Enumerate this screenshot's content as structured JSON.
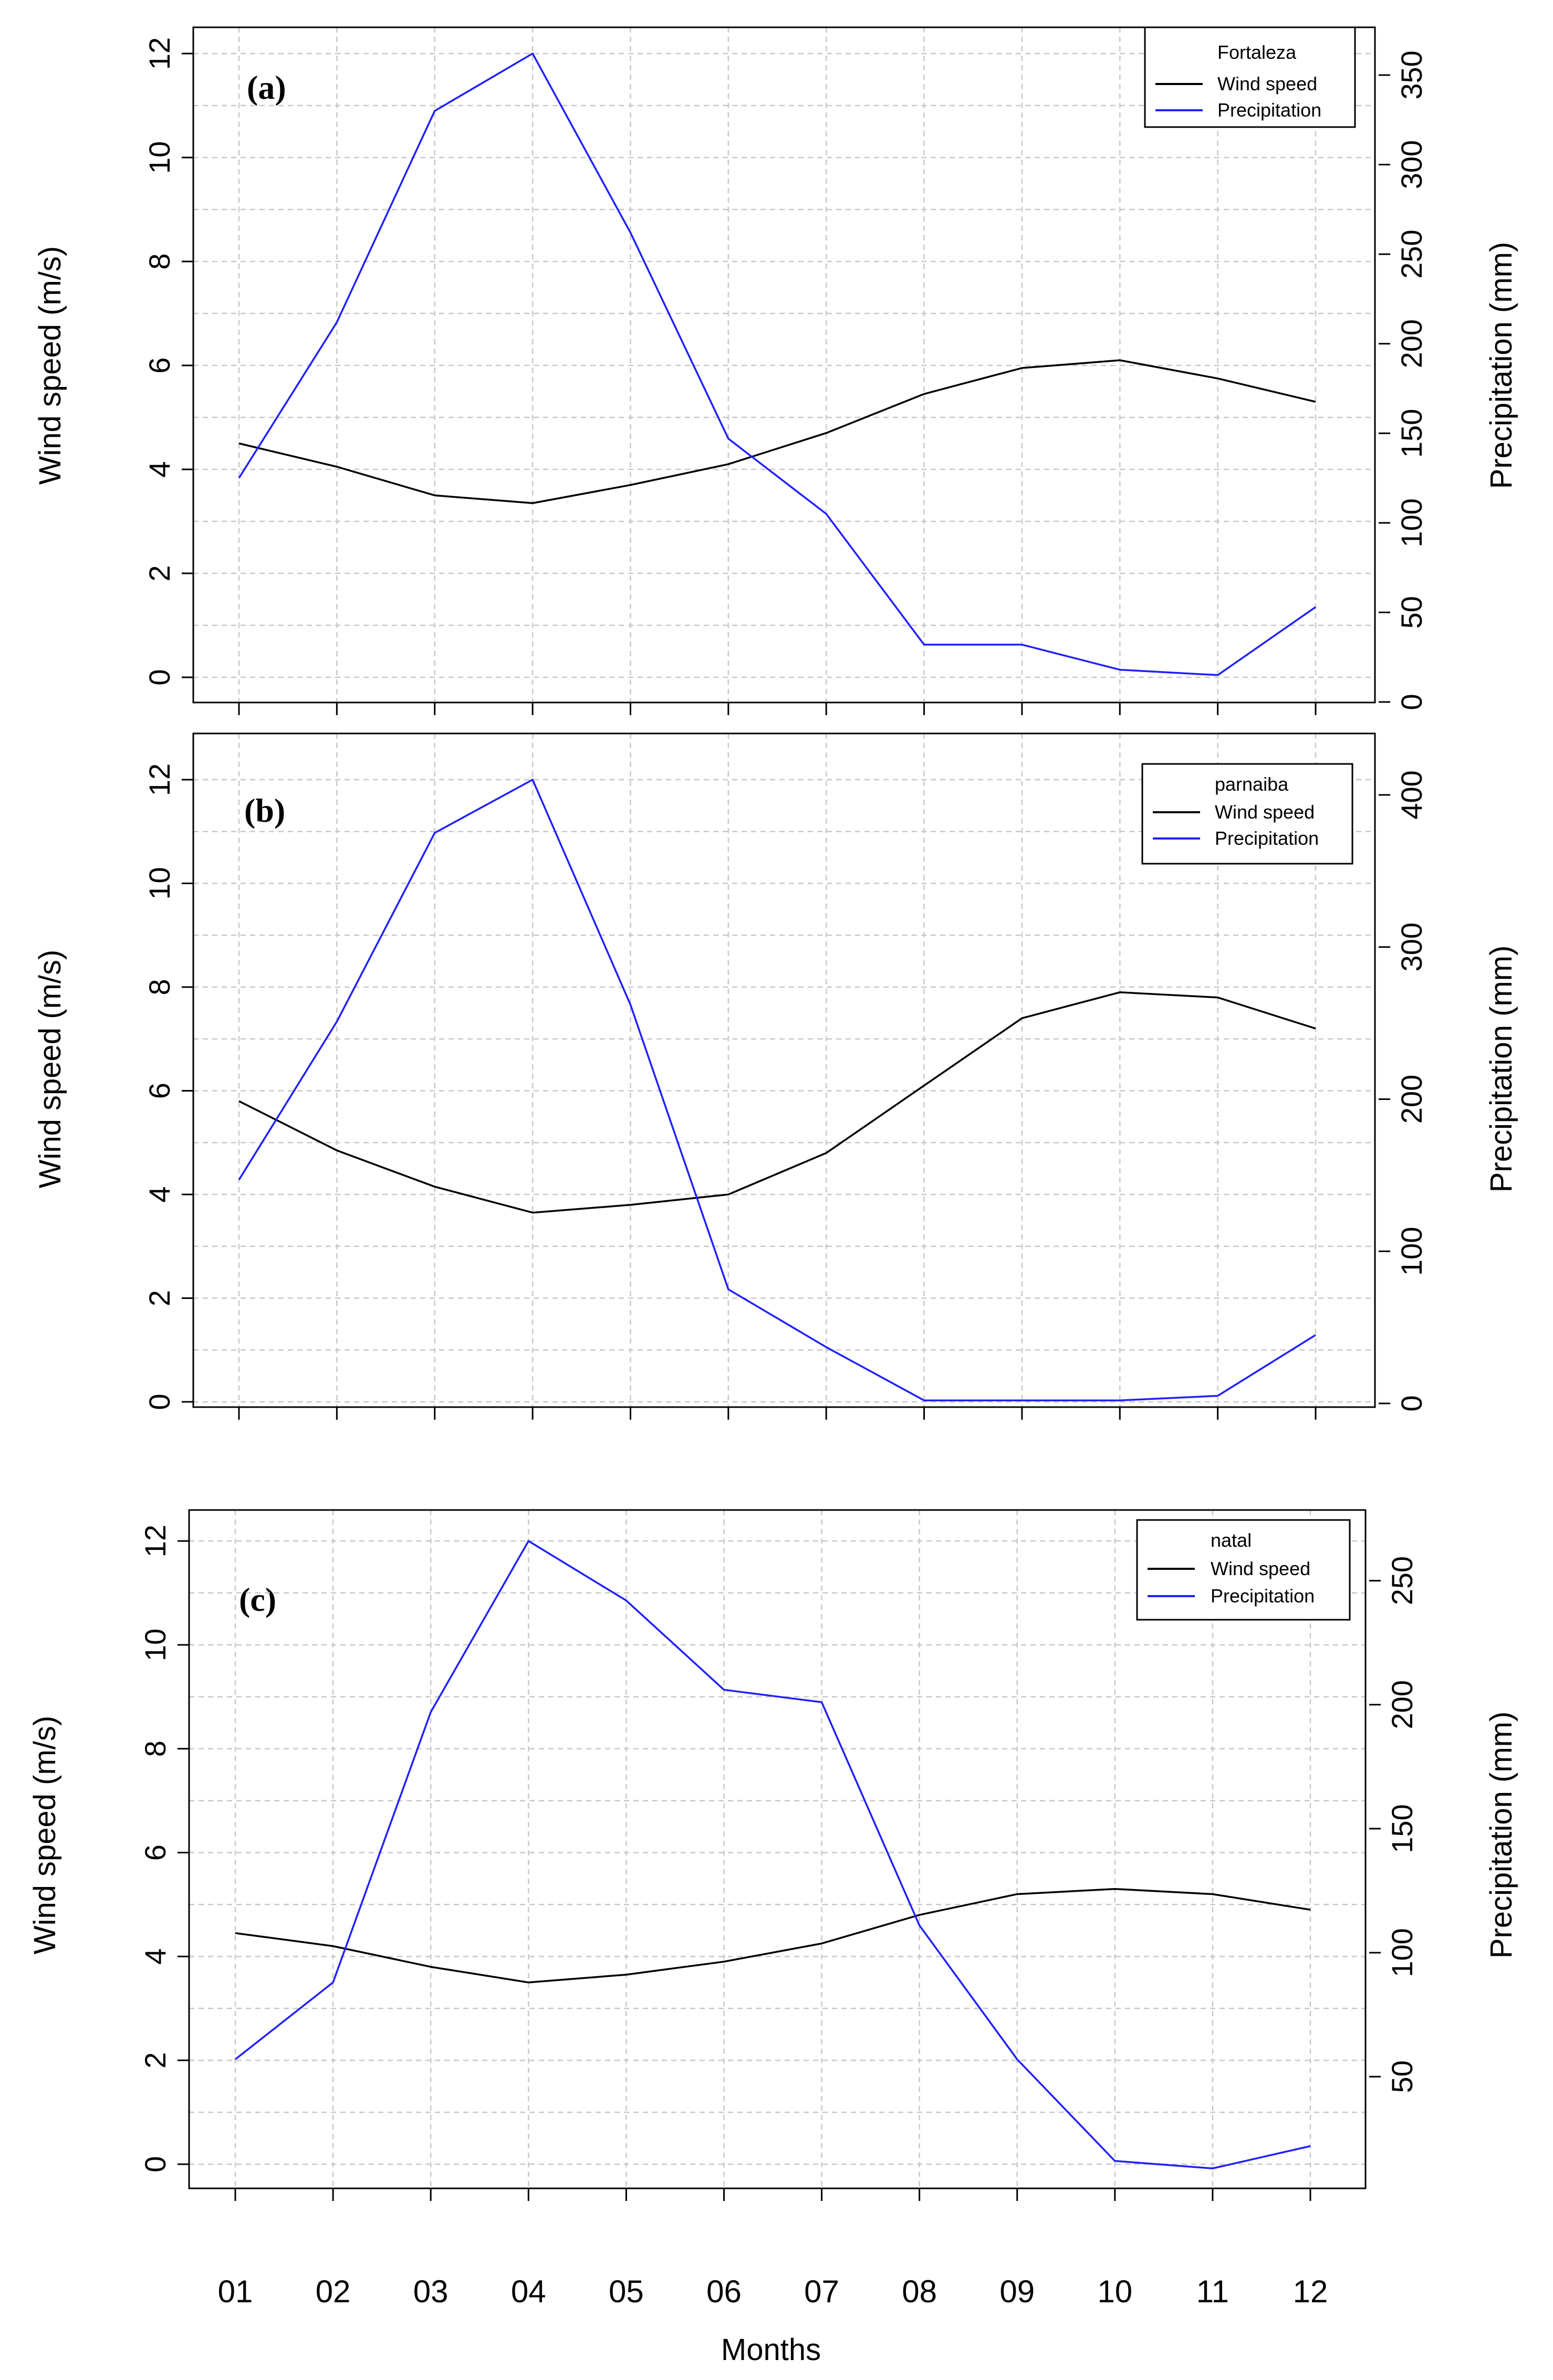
{
  "figure": {
    "x_axis_title": "Months",
    "months": [
      "01",
      "02",
      "03",
      "04",
      "05",
      "06",
      "07",
      "08",
      "09",
      "10",
      "11",
      "12"
    ]
  },
  "colors": {
    "wind": "#000000",
    "precip": "#1f1fff",
    "grid": "#c8c8c8"
  },
  "chart_data": [
    {
      "type": "line",
      "panel_label": "(a)",
      "station": "Fortaleza",
      "categories": [
        "01",
        "02",
        "03",
        "04",
        "05",
        "06",
        "07",
        "08",
        "09",
        "10",
        "11",
        "12"
      ],
      "ylabel_left": "Wind speed (m/s)",
      "ylabel_right": "Precipitation (mm)",
      "left_ticks": [
        0,
        2,
        4,
        6,
        8,
        10,
        12
      ],
      "right_ticks": [
        0,
        50,
        100,
        150,
        200,
        250,
        300,
        350
      ],
      "left_range": [
        -0.5,
        12.4
      ],
      "right_range": [
        0,
        362
      ],
      "legend": {
        "title": "Fortaleza",
        "entries": [
          "Wind speed",
          "Precipitation"
        ]
      },
      "series": [
        {
          "name": "Wind speed",
          "axis": "left",
          "values": [
            4.5,
            4.05,
            3.5,
            3.35,
            3.7,
            4.1,
            4.7,
            5.45,
            5.95,
            6.1,
            5.75,
            5.3
          ]
        },
        {
          "name": "Precipitation",
          "axis": "right",
          "values": [
            125,
            212,
            330,
            362,
            262,
            147,
            105,
            32,
            32,
            18,
            15,
            53
          ]
        }
      ]
    },
    {
      "type": "line",
      "panel_label": "(b)",
      "station": "parnaiba",
      "categories": [
        "01",
        "02",
        "03",
        "04",
        "05",
        "06",
        "07",
        "08",
        "09",
        "10",
        "11",
        "12"
      ],
      "ylabel_left": "Wind speed (m/s)",
      "ylabel_right": "Precipitation (mm)",
      "left_ticks": [
        0,
        2,
        4,
        6,
        8,
        10,
        12
      ],
      "right_ticks": [
        0,
        100,
        200,
        300,
        400
      ],
      "left_range": [
        -0.5,
        12.4
      ],
      "right_range": [
        0,
        410
      ],
      "legend": {
        "title": "parnaiba",
        "entries": [
          "Wind speed",
          "Precipitation"
        ]
      },
      "series": [
        {
          "name": "Wind speed",
          "axis": "left",
          "values": [
            5.8,
            4.85,
            4.15,
            3.65,
            3.8,
            4.0,
            4.8,
            6.1,
            7.4,
            7.9,
            7.8,
            7.2
          ]
        },
        {
          "name": "Precipitation",
          "axis": "right",
          "values": [
            147,
            251,
            375,
            410,
            262,
            75,
            37,
            2,
            2,
            2,
            5,
            45
          ]
        }
      ]
    },
    {
      "type": "line",
      "panel_label": "(c)",
      "station": "natal",
      "categories": [
        "01",
        "02",
        "03",
        "04",
        "05",
        "06",
        "07",
        "08",
        "09",
        "10",
        "11",
        "12"
      ],
      "ylabel_left": "Wind speed (m/s)",
      "ylabel_right": "Precipitation (mm)",
      "left_ticks": [
        0,
        2,
        4,
        6,
        8,
        10,
        12
      ],
      "right_ticks": [
        50,
        100,
        150,
        200,
        250
      ],
      "left_range": [
        -0.5,
        12.4
      ],
      "right_range": [
        13,
        266
      ],
      "legend": {
        "title": "natal",
        "entries": [
          "Wind speed",
          "Precipitation"
        ]
      },
      "series": [
        {
          "name": "Wind speed",
          "axis": "left",
          "values": [
            4.45,
            4.2,
            3.8,
            3.5,
            3.65,
            3.9,
            4.25,
            4.8,
            5.2,
            5.3,
            5.2,
            4.9
          ]
        },
        {
          "name": "Precipitation",
          "axis": "right",
          "values": [
            57,
            88,
            197,
            266,
            242,
            206,
            201,
            111,
            57,
            16,
            13,
            22
          ]
        }
      ]
    }
  ]
}
